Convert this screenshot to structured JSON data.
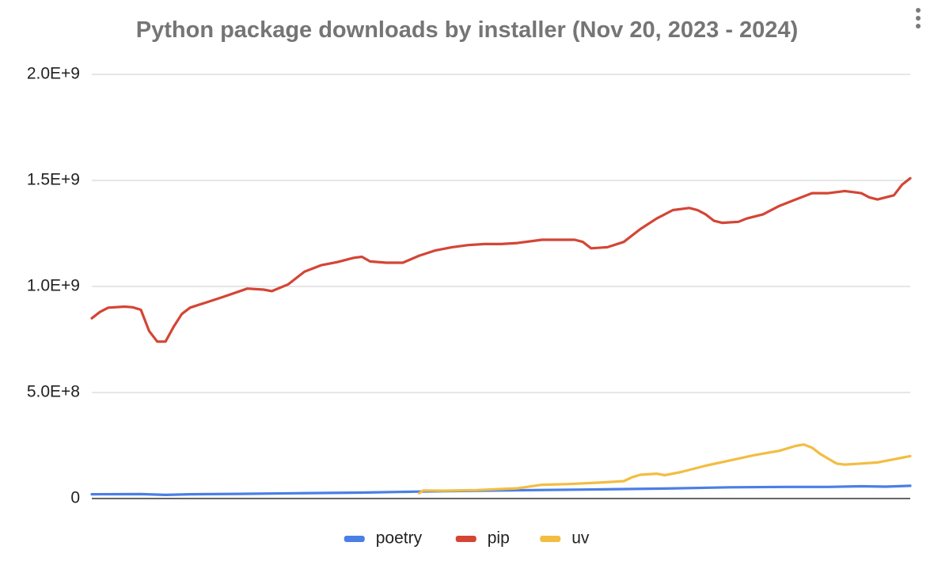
{
  "chart_data": {
    "type": "line",
    "title": "Python package downloads by installer (Nov 20, 2023 - 2024)",
    "xlabel": "",
    "ylabel": "",
    "x_range": [
      0,
      100
    ],
    "ylim": [
      0,
      2000000000
    ],
    "y_ticks": [
      0,
      500000000,
      1000000000,
      1500000000,
      2000000000
    ],
    "y_tick_labels": [
      "0",
      "5.0E+8",
      "1.0E+9",
      "1.5E+9",
      "2.0E+9"
    ],
    "grid": true,
    "legend_position": "bottom",
    "series": [
      {
        "name": "poetry",
        "color": "#4a7fe6",
        "points": [
          [
            0,
            20000000
          ],
          [
            6,
            21000000
          ],
          [
            9,
            17000000
          ],
          [
            12,
            20000000
          ],
          [
            18,
            22000000
          ],
          [
            25,
            25000000
          ],
          [
            33,
            28000000
          ],
          [
            40,
            33000000
          ],
          [
            50,
            38000000
          ],
          [
            60,
            42000000
          ],
          [
            70,
            47000000
          ],
          [
            78,
            53000000
          ],
          [
            85,
            55000000
          ],
          [
            90,
            55000000
          ],
          [
            94,
            58000000
          ],
          [
            97,
            56000000
          ],
          [
            100,
            60000000
          ]
        ]
      },
      {
        "name": "pip",
        "color": "#d44535",
        "points": [
          [
            0,
            850000000
          ],
          [
            1,
            880000000
          ],
          [
            2,
            900000000
          ],
          [
            4,
            905000000
          ],
          [
            5,
            902000000
          ],
          [
            6,
            890000000
          ],
          [
            7,
            790000000
          ],
          [
            8,
            740000000
          ],
          [
            9,
            740000000
          ],
          [
            10,
            810000000
          ],
          [
            11,
            870000000
          ],
          [
            12,
            900000000
          ],
          [
            14,
            925000000
          ],
          [
            16,
            950000000
          ],
          [
            19,
            990000000
          ],
          [
            21,
            985000000
          ],
          [
            22,
            978000000
          ],
          [
            24,
            1010000000
          ],
          [
            26,
            1070000000
          ],
          [
            28,
            1100000000
          ],
          [
            30,
            1115000000
          ],
          [
            32,
            1135000000
          ],
          [
            33,
            1140000000
          ],
          [
            34,
            1118000000
          ],
          [
            36,
            1112000000
          ],
          [
            38,
            1112000000
          ],
          [
            40,
            1145000000
          ],
          [
            42,
            1170000000
          ],
          [
            44,
            1185000000
          ],
          [
            46,
            1195000000
          ],
          [
            48,
            1200000000
          ],
          [
            50,
            1200000000
          ],
          [
            52,
            1205000000
          ],
          [
            55,
            1220000000
          ],
          [
            59,
            1220000000
          ],
          [
            60,
            1210000000
          ],
          [
            61,
            1180000000
          ],
          [
            63,
            1185000000
          ],
          [
            65,
            1210000000
          ],
          [
            67,
            1270000000
          ],
          [
            69,
            1320000000
          ],
          [
            71,
            1360000000
          ],
          [
            73,
            1370000000
          ],
          [
            74,
            1360000000
          ],
          [
            75,
            1340000000
          ],
          [
            76,
            1310000000
          ],
          [
            77,
            1300000000
          ],
          [
            79,
            1305000000
          ],
          [
            80,
            1320000000
          ],
          [
            82,
            1340000000
          ],
          [
            84,
            1380000000
          ],
          [
            86,
            1410000000
          ],
          [
            88,
            1440000000
          ],
          [
            90,
            1440000000
          ],
          [
            92,
            1450000000
          ],
          [
            94,
            1440000000
          ],
          [
            95,
            1420000000
          ],
          [
            96,
            1410000000
          ],
          [
            98,
            1430000000
          ],
          [
            99,
            1480000000
          ],
          [
            100,
            1510000000
          ]
        ]
      },
      {
        "name": "uv",
        "color": "#f2bd42",
        "points": [
          [
            40,
            25000000
          ],
          [
            40.5,
            38000000
          ],
          [
            43,
            37000000
          ],
          [
            47,
            40000000
          ],
          [
            52,
            48000000
          ],
          [
            55,
            65000000
          ],
          [
            58,
            68000000
          ],
          [
            62,
            75000000
          ],
          [
            65,
            82000000
          ],
          [
            66,
            100000000
          ],
          [
            67,
            112000000
          ],
          [
            69,
            117000000
          ],
          [
            70,
            110000000
          ],
          [
            72,
            125000000
          ],
          [
            75,
            155000000
          ],
          [
            78,
            180000000
          ],
          [
            81,
            205000000
          ],
          [
            84,
            225000000
          ],
          [
            86,
            248000000
          ],
          [
            87,
            255000000
          ],
          [
            88,
            240000000
          ],
          [
            89,
            210000000
          ],
          [
            91,
            165000000
          ],
          [
            92,
            160000000
          ],
          [
            94,
            165000000
          ],
          [
            96,
            170000000
          ],
          [
            98,
            185000000
          ],
          [
            100,
            200000000
          ]
        ]
      }
    ]
  }
}
